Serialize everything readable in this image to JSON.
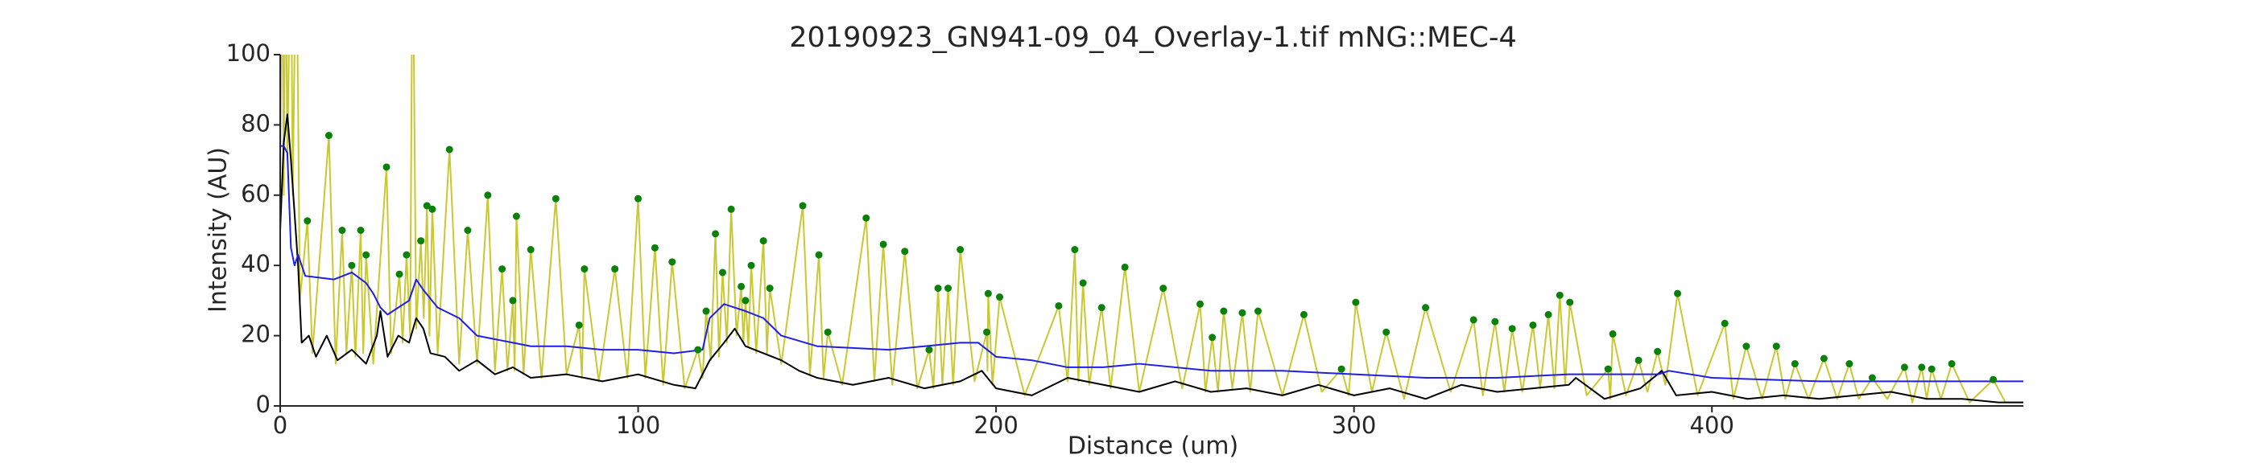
{
  "chart_data": {
    "type": "line",
    "title": "20190923_GN941-09_04_Overlay-1.tif mNG::MEC-4",
    "x_label": "Distance (um)",
    "y_label": "Intensity (AU)",
    "xlim": [
      0,
      487
    ],
    "ylim": [
      0,
      100
    ],
    "xticks": [
      0,
      100,
      200,
      300,
      400
    ],
    "yticks": [
      0,
      20,
      40,
      60,
      80,
      100
    ],
    "grid": false,
    "series": [
      {
        "mode": "line",
        "color": "#c8c832",
        "x": [
          0,
          0.5,
          1,
          1.5,
          2,
          3,
          3.5,
          4.5,
          5.5,
          7.6,
          9,
          13.6,
          15.5,
          17.3,
          18.5,
          20,
          21,
          22.5,
          23.2,
          24,
          26,
          29.7,
          31,
          33.3,
          34.2,
          35.3,
          36.3,
          37,
          38,
          39.3,
          40.1,
          41,
          41.7,
          42.5,
          44,
          47.3,
          50,
          52.4,
          55,
          58,
          60,
          62,
          63.5,
          65,
          65.5,
          66,
          68,
          70,
          73,
          77,
          80,
          83.5,
          84.3,
          85,
          89,
          93.5,
          97,
          100,
          102,
          104.7,
          107,
          109.5,
          113,
          116.7,
          118,
          119,
          120.3,
          121.6,
          122.6,
          123.6,
          124.8,
          126,
          127.5,
          128.8,
          129.4,
          130,
          130.8,
          131.6,
          133,
          135,
          136,
          136.8,
          140,
          146,
          148,
          150.5,
          151.8,
          153,
          157,
          163.7,
          166,
          168.5,
          171,
          174.5,
          178,
          181.3,
          182.5,
          183.8,
          185,
          186.6,
          188,
          190,
          194,
          197.4,
          197.6,
          197.8,
          199,
          201,
          208,
          217.5,
          220,
          222,
          223,
          224.3,
          226,
          229.5,
          232,
          236,
          240,
          246.7,
          252,
          257,
          258.5,
          260.4,
          262,
          263.6,
          266,
          268.8,
          271,
          273.2,
          280,
          286,
          291,
          296.5,
          298.5,
          300.5,
          305,
          309,
          314,
          320,
          327,
          333.4,
          336,
          339.4,
          342,
          344.2,
          347,
          350,
          352,
          354.3,
          356,
          357.5,
          359,
          360.3,
          365,
          371,
          371.6,
          372.3,
          376,
          379.5,
          382,
          384.8,
          387,
          390.4,
          396,
          403.6,
          406,
          409.6,
          414,
          418,
          420.5,
          423.2,
          427,
          431.3,
          435,
          438.4,
          441,
          444.8,
          449,
          453.8,
          456,
          458.6,
          460,
          461.4,
          464,
          467,
          472,
          478.6,
          482,
          487
        ],
        "values": [
          60,
          140,
          60,
          140,
          70,
          140,
          60,
          140,
          30,
          52.7,
          15,
          77,
          12,
          50,
          15,
          40,
          14,
          50,
          15,
          43,
          12,
          68,
          15,
          37.5,
          18,
          43,
          20,
          140,
          22,
          47,
          25,
          57,
          20,
          56,
          15,
          73,
          12,
          50,
          12,
          60,
          10,
          39,
          10,
          30,
          10,
          54,
          9,
          44.5,
          8,
          59,
          9,
          23,
          8,
          39,
          7,
          39,
          8,
          59,
          8,
          45,
          6,
          41,
          5,
          16,
          8,
          27,
          13,
          49,
          14,
          38,
          18,
          56,
          20,
          34,
          18,
          30,
          17,
          40,
          15,
          47,
          15,
          33.5,
          12,
          57,
          9,
          43,
          8,
          21,
          6,
          53.5,
          7,
          46,
          6,
          44,
          5,
          16,
          5,
          33.5,
          6,
          33.5,
          6,
          44.5,
          7,
          21,
          10,
          32,
          6,
          31,
          3,
          28.5,
          7,
          44.5,
          7,
          35,
          6,
          28,
          5,
          39.5,
          4,
          33.5,
          5,
          29,
          4,
          19.5,
          4,
          27,
          5,
          26.5,
          4,
          27,
          3,
          26,
          4,
          10.5,
          3,
          29.5,
          4,
          21,
          2,
          28,
          4,
          24.5,
          3,
          24,
          4,
          22,
          4,
          23,
          5,
          26,
          5,
          31.5,
          6,
          29.5,
          3,
          10.5,
          2,
          20.5,
          3,
          13,
          4,
          15.5,
          6,
          32,
          3,
          23.5,
          2,
          17,
          2,
          17,
          2,
          12,
          2,
          13.5,
          2,
          12,
          2,
          8,
          2,
          11,
          1,
          11,
          2,
          10.5,
          2,
          12,
          1,
          7.5,
          1,
          1
        ]
      },
      {
        "mode": "line",
        "color": "#000000",
        "x": [
          0,
          1,
          2,
          3,
          5,
          6,
          8,
          10,
          13,
          16,
          20,
          24,
          27,
          28,
          30,
          33,
          36,
          38,
          40,
          42,
          46,
          50,
          55,
          60,
          65,
          70,
          80,
          90,
          100,
          110,
          116,
          120,
          124,
          127,
          130,
          135,
          140,
          145,
          150,
          160,
          170,
          180,
          190,
          196,
          200,
          210,
          220,
          230,
          240,
          250,
          260,
          270,
          280,
          290,
          300,
          310,
          320,
          330,
          340,
          350,
          360,
          362,
          370,
          380,
          386,
          390,
          400,
          410,
          420,
          430,
          440,
          450,
          460,
          470,
          480,
          487
        ],
        "values": [
          50,
          75,
          83,
          70,
          40,
          18,
          20,
          14,
          20,
          13,
          16,
          12,
          20,
          27,
          14,
          20,
          18,
          25,
          22,
          15,
          14,
          10,
          13,
          9,
          11,
          8,
          9,
          7,
          9,
          6,
          5,
          13,
          18,
          22,
          17,
          15,
          13,
          10,
          8,
          6,
          8,
          5,
          7,
          10,
          5,
          3,
          8,
          6,
          4,
          7,
          4,
          5,
          3,
          6,
          3,
          5,
          2,
          6,
          4,
          5,
          6,
          8,
          2,
          5,
          10,
          3,
          4,
          2,
          3,
          2,
          3,
          4,
          2,
          2,
          1,
          1
        ]
      },
      {
        "mode": "line",
        "color": "#1f1fe8",
        "x": [
          0,
          1,
          2,
          3,
          4,
          5,
          7,
          15,
          20,
          24,
          26,
          28,
          30,
          33,
          36,
          38,
          40,
          44,
          50,
          55,
          60,
          70,
          80,
          90,
          100,
          110,
          118,
          120,
          124,
          130,
          135,
          140,
          150,
          170,
          180,
          190,
          195,
          200,
          210,
          220,
          230,
          240,
          260,
          280,
          300,
          320,
          340,
          360,
          375,
          385,
          388,
          400,
          430,
          460,
          487
        ],
        "values": [
          74,
          74,
          72,
          45,
          40,
          43,
          37,
          36,
          38,
          35,
          32,
          28,
          26,
          28,
          30,
          36,
          33,
          28,
          25,
          20,
          19,
          17,
          17,
          16,
          16,
          15,
          16,
          25,
          29,
          27,
          25,
          20,
          17,
          16,
          17,
          18,
          18,
          14,
          13,
          11,
          11,
          12,
          10,
          10,
          9,
          8,
          8,
          9,
          9,
          9,
          10,
          8,
          7,
          7,
          7
        ]
      },
      {
        "mode": "markers",
        "color": "#0a820a",
        "x": [
          7.6,
          13.6,
          17.3,
          20,
          22.5,
          24,
          29.7,
          33.3,
          35.3,
          39.3,
          41,
          42.5,
          47.3,
          52.4,
          58,
          62,
          65,
          66,
          70,
          77,
          83.5,
          85,
          93.5,
          100,
          104.7,
          109.5,
          116.7,
          119,
          121.6,
          123.6,
          126,
          128.8,
          130,
          131.6,
          135,
          136.8,
          146,
          150.5,
          153,
          163.7,
          168.5,
          174.5,
          181.3,
          183.8,
          186.6,
          190,
          197.4,
          197.8,
          201,
          217.5,
          222,
          224.3,
          229.5,
          236,
          246.7,
          257,
          260.4,
          263.6,
          268.8,
          273.2,
          286,
          296.5,
          300.5,
          309,
          320,
          333.4,
          339.4,
          344.2,
          350,
          354.3,
          357.5,
          360.3,
          371,
          372.3,
          379.5,
          384.8,
          390.4,
          403.6,
          409.6,
          418,
          423.2,
          431.3,
          438.4,
          444.8,
          453.8,
          458.6,
          461.4,
          467,
          478.6
        ],
        "values": [
          52.7,
          77,
          50,
          40,
          50,
          43,
          68,
          37.5,
          43,
          47,
          57,
          56,
          73,
          50,
          60,
          39,
          30,
          54,
          44.5,
          59,
          23,
          39,
          39,
          59,
          45,
          41,
          16,
          27,
          49,
          38,
          56,
          34,
          30,
          40,
          47,
          33.5,
          57,
          43,
          21,
          53.5,
          46,
          44,
          16,
          33.5,
          33.5,
          44.5,
          21,
          32,
          31,
          28.5,
          44.5,
          35,
          28,
          39.5,
          33.5,
          29,
          19.5,
          27,
          26.5,
          27,
          26,
          10.5,
          29.5,
          21,
          28,
          24.5,
          24,
          22,
          23,
          26,
          31.5,
          29.5,
          10.5,
          20.5,
          13,
          15.5,
          32,
          23.5,
          17,
          17,
          12,
          13.5,
          12,
          8,
          11,
          11,
          10.5,
          12,
          7.5
        ]
      }
    ]
  }
}
